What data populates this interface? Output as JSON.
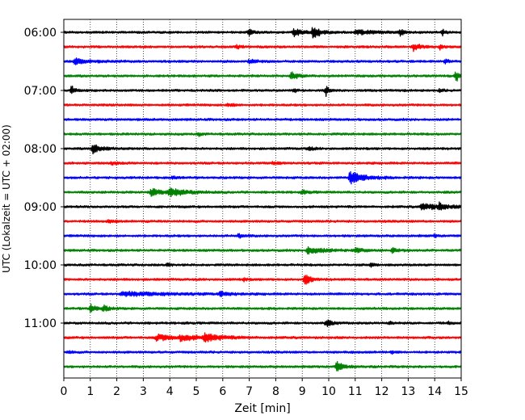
{
  "chart_data": {
    "type": "line",
    "title": "",
    "xlabel": "Zeit  [min]",
    "ylabel": "UTC (Lokalzeit = UTC + 02:00)",
    "xlim": [
      0,
      15
    ],
    "x_ticks": [
      0,
      1,
      2,
      3,
      4,
      5,
      6,
      7,
      8,
      9,
      10,
      11,
      12,
      13,
      14,
      15
    ],
    "y_tick_labels": [
      "06:00",
      "07:00",
      "08:00",
      "09:00",
      "10:00",
      "11:00"
    ],
    "grid": "vertical dotted lines at each minute",
    "colors": [
      "#000000",
      "#ff0000",
      "#0000ff",
      "#008000"
    ],
    "start_utc": "06:00",
    "trace_interval_min": 15,
    "trace_duration_min": 15,
    "series": [
      {
        "start": "06:00",
        "color": "#000000",
        "events": [
          [
            7.0,
            1.2,
            0.1
          ],
          [
            8.7,
            1.0,
            0.3
          ],
          [
            9.4,
            1.4,
            0.3
          ],
          [
            11.0,
            0.5,
            0.8
          ],
          [
            12.7,
            1.0,
            0.1
          ],
          [
            14.3,
            0.7,
            0.1
          ]
        ]
      },
      {
        "start": "06:15",
        "color": "#ff0000",
        "events": [
          [
            13.2,
            1.1,
            0.2
          ],
          [
            6.5,
            0.4,
            0.2
          ],
          [
            14.2,
            0.5,
            0.1
          ]
        ]
      },
      {
        "start": "06:30",
        "color": "#0000ff",
        "events": [
          [
            0.4,
            0.7,
            0.5
          ],
          [
            7.0,
            0.4,
            0.3
          ],
          [
            14.4,
            0.5,
            0.1
          ]
        ]
      },
      {
        "start": "06:45",
        "color": "#008000",
        "events": [
          [
            8.6,
            1.2,
            0.2
          ],
          [
            14.8,
            1.6,
            0.1
          ]
        ]
      },
      {
        "start": "07:00",
        "color": "#000000",
        "events": [
          [
            0.3,
            1.1,
            0.1
          ],
          [
            8.7,
            0.5,
            0.1
          ],
          [
            9.9,
            1.2,
            0.1
          ],
          [
            14.2,
            0.4,
            0.1
          ]
        ]
      },
      {
        "start": "07:15",
        "color": "#ff0000",
        "events": [
          [
            6.2,
            0.4,
            0.2
          ]
        ]
      },
      {
        "start": "07:30",
        "color": "#0000ff",
        "events": []
      },
      {
        "start": "07:45",
        "color": "#008000",
        "events": [
          [
            5.1,
            0.4,
            0.1
          ]
        ]
      },
      {
        "start": "08:00",
        "color": "#000000",
        "events": [
          [
            1.1,
            1.1,
            0.3
          ],
          [
            9.2,
            0.4,
            0.2
          ]
        ]
      },
      {
        "start": "08:15",
        "color": "#ff0000",
        "events": [
          [
            1.8,
            0.4,
            0.2
          ],
          [
            7.9,
            0.4,
            0.2
          ]
        ]
      },
      {
        "start": "08:30",
        "color": "#0000ff",
        "events": [
          [
            10.8,
            1.5,
            0.5
          ],
          [
            4.1,
            0.3,
            0.2
          ]
        ]
      },
      {
        "start": "08:45",
        "color": "#008000",
        "events": [
          [
            3.3,
            0.8,
            0.4
          ],
          [
            4.0,
            0.9,
            0.6
          ],
          [
            9.0,
            0.4,
            0.2
          ]
        ]
      },
      {
        "start": "09:00",
        "color": "#000000",
        "events": [
          [
            13.5,
            0.7,
            0.9
          ],
          [
            14.2,
            0.9,
            0.1
          ]
        ]
      },
      {
        "start": "09:15",
        "color": "#ff0000",
        "events": [
          [
            1.7,
            0.5,
            0.2
          ]
        ]
      },
      {
        "start": "09:30",
        "color": "#0000ff",
        "events": [
          [
            6.6,
            0.5,
            0.2
          ],
          [
            14.0,
            0.3,
            0.1
          ]
        ]
      },
      {
        "start": "09:45",
        "color": "#008000",
        "events": [
          [
            9.2,
            0.8,
            0.6
          ],
          [
            11.0,
            0.5,
            0.3
          ],
          [
            12.4,
            0.5,
            0.2
          ]
        ]
      },
      {
        "start": "10:00",
        "color": "#000000",
        "events": [
          [
            3.9,
            0.4,
            0.1
          ],
          [
            11.6,
            0.4,
            0.1
          ]
        ]
      },
      {
        "start": "10:15",
        "color": "#ff0000",
        "events": [
          [
            9.1,
            1.3,
            0.2
          ],
          [
            6.8,
            0.4,
            0.1
          ]
        ]
      },
      {
        "start": "10:30",
        "color": "#0000ff",
        "events": [
          [
            2.2,
            0.5,
            1.6
          ],
          [
            5.9,
            0.6,
            0.3
          ]
        ]
      },
      {
        "start": "10:45",
        "color": "#008000",
        "events": [
          [
            1.0,
            1.0,
            0.2
          ],
          [
            1.5,
            0.6,
            0.2
          ]
        ]
      },
      {
        "start": "11:00",
        "color": "#000000",
        "events": [
          [
            9.9,
            0.8,
            0.2
          ],
          [
            12.3,
            0.4,
            0.1
          ],
          [
            14.5,
            0.4,
            0.1
          ]
        ]
      },
      {
        "start": "11:15",
        "color": "#ff0000",
        "events": [
          [
            3.5,
            0.7,
            0.8
          ],
          [
            5.3,
            0.9,
            0.6
          ],
          [
            4.4,
            0.6,
            0.5
          ]
        ]
      },
      {
        "start": "11:30",
        "color": "#0000ff",
        "events": [
          [
            12.4,
            0.4,
            0.1
          ],
          [
            0.2,
            0.4,
            0.1
          ]
        ]
      },
      {
        "start": "11:45",
        "color": "#008000",
        "events": [
          [
            10.3,
            1.3,
            0.2
          ]
        ]
      }
    ]
  }
}
